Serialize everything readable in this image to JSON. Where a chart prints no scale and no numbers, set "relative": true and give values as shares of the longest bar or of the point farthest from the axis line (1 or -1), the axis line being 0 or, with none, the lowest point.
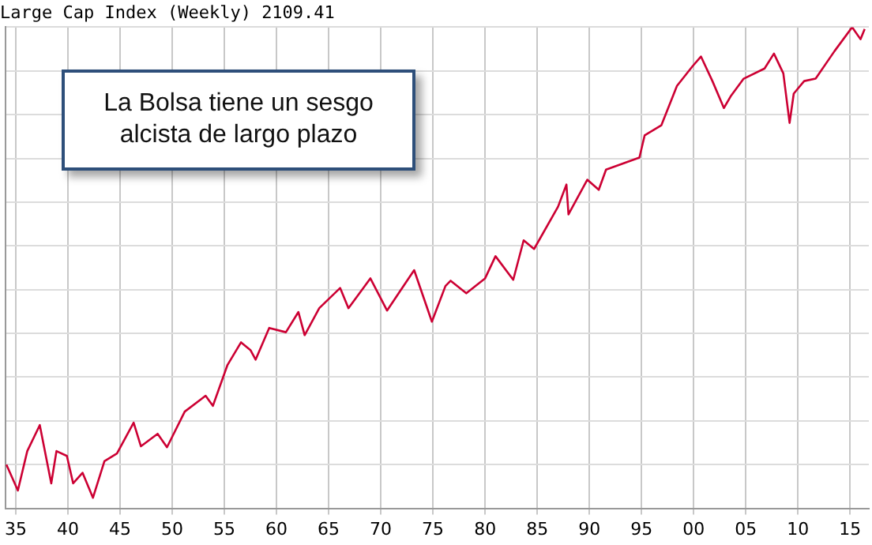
{
  "chart_data": {
    "type": "line",
    "title": "Large Cap Index (Weekly) 2109.41",
    "relative": true,
    "annotations": [
      "La Bolsa tiene un sesgo alcista de largo plazo"
    ],
    "xlim": [
      1934.0,
      2016.8
    ],
    "xticks": [
      {
        "value": 1935,
        "label": "35"
      },
      {
        "value": 1940,
        "label": "40"
      },
      {
        "value": 1945,
        "label": "45"
      },
      {
        "value": 1950,
        "label": "50"
      },
      {
        "value": 1955,
        "label": "55"
      },
      {
        "value": 1960,
        "label": "60"
      },
      {
        "value": 1965,
        "label": "65"
      },
      {
        "value": 1970,
        "label": "70"
      },
      {
        "value": 1975,
        "label": "75"
      },
      {
        "value": 1980,
        "label": "80"
      },
      {
        "value": 1985,
        "label": "85"
      },
      {
        "value": 1990,
        "label": "90"
      },
      {
        "value": 1995,
        "label": "95"
      },
      {
        "value": 2000,
        "label": "00"
      },
      {
        "value": 2005,
        "label": "05"
      },
      {
        "value": 2010,
        "label": "10"
      },
      {
        "value": 2015,
        "label": "15"
      }
    ],
    "grid": true,
    "marker": "none",
    "line_style": "solid",
    "series": [
      {
        "color": "#cc0033",
        "x": [
          1934.1,
          1935.2,
          1936.1,
          1937.3,
          1938.4,
          1938.9,
          1939.9,
          1940.5,
          1941.4,
          1942.4,
          1943.5,
          1944.7,
          1946.3,
          1947.0,
          1948.6,
          1949.5,
          1951.2,
          1953.2,
          1953.9,
          1955.3,
          1956.6,
          1957.5,
          1958.0,
          1959.3,
          1960.9,
          1962.1,
          1962.7,
          1964.1,
          1966.1,
          1966.9,
          1969.0,
          1970.6,
          1973.2,
          1974.9,
          1976.2,
          1976.7,
          1978.2,
          1980.0,
          1981.0,
          1982.7,
          1983.7,
          1984.7,
          1987.0,
          1987.8,
          1988.0,
          1989.8,
          1990.9,
          1991.6,
          1994.8,
          1995.3,
          1996.9,
          1998.4,
          1999.9,
          2000.7,
          2001.8,
          2002.9,
          2003.6,
          2004.8,
          2006.8,
          2007.7,
          2008.6,
          2009.2,
          2009.6,
          2010.6,
          2011.7,
          2013.5,
          2015.2,
          2016.0,
          2016.4
        ],
        "values": [
          0.091,
          0.037,
          0.119,
          0.173,
          0.052,
          0.119,
          0.109,
          0.052,
          0.074,
          0.022,
          0.098,
          0.114,
          0.178,
          0.129,
          0.155,
          0.127,
          0.201,
          0.234,
          0.213,
          0.298,
          0.345,
          0.329,
          0.309,
          0.375,
          0.366,
          0.408,
          0.36,
          0.416,
          0.458,
          0.416,
          0.478,
          0.411,
          0.495,
          0.388,
          0.462,
          0.473,
          0.447,
          0.478,
          0.524,
          0.475,
          0.557,
          0.539,
          0.627,
          0.673,
          0.611,
          0.683,
          0.662,
          0.704,
          0.729,
          0.775,
          0.796,
          0.878,
          0.919,
          0.939,
          0.888,
          0.832,
          0.858,
          0.893,
          0.914,
          0.945,
          0.904,
          0.801,
          0.862,
          0.888,
          0.893,
          0.95,
          1,
          0.975,
          0.996
        ]
      }
    ]
  }
}
